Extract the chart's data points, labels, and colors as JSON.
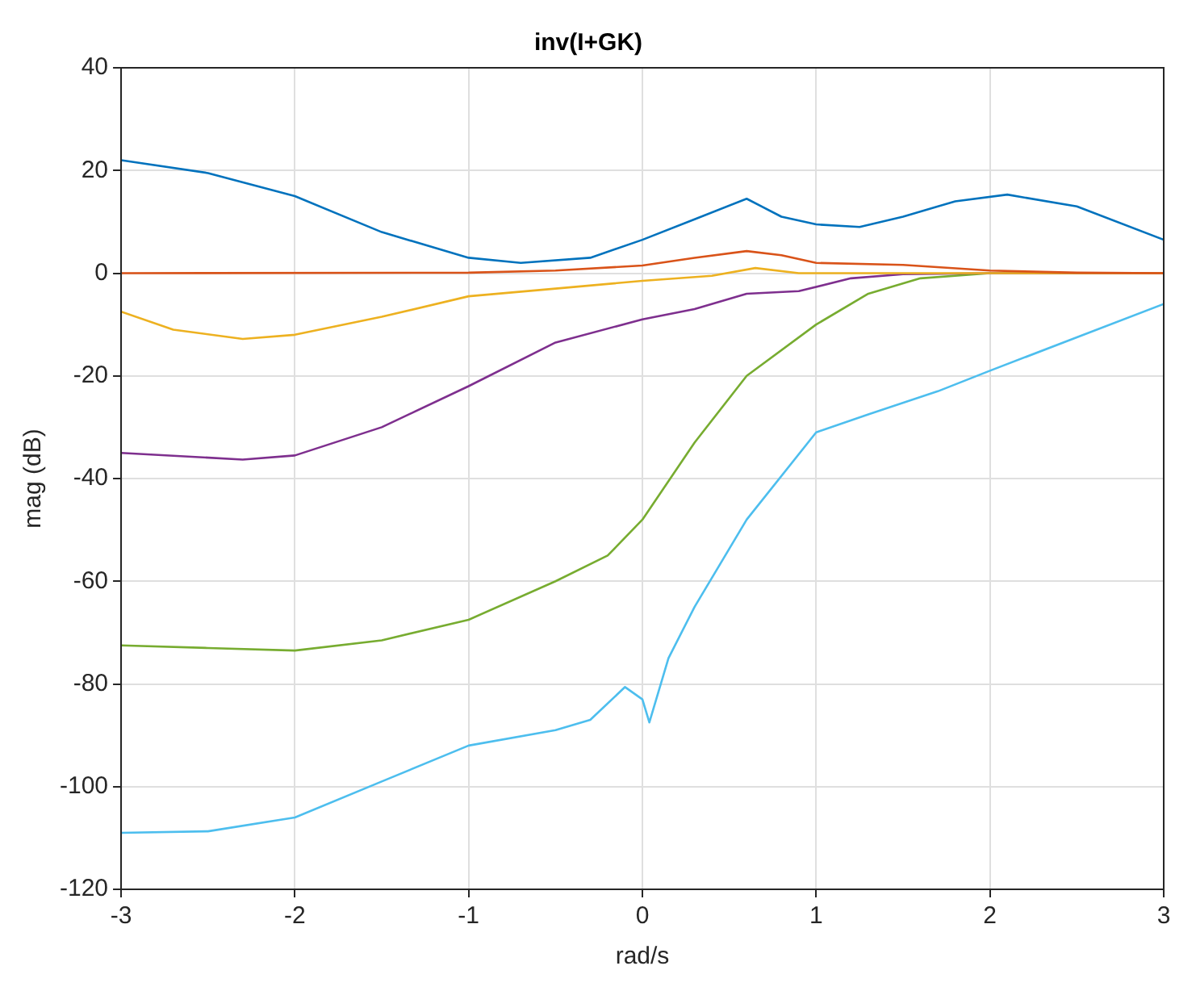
{
  "chart_data": {
    "type": "line",
    "title": "inv(I+GK)",
    "xlabel": "rad/s",
    "ylabel": "mag (dB)",
    "xlim": [
      -3,
      3
    ],
    "ylim": [
      -120,
      40
    ],
    "xticks": [
      -3,
      -2,
      -1,
      0,
      1,
      2,
      3
    ],
    "yticks": [
      -120,
      -100,
      -80,
      -60,
      -40,
      -20,
      0,
      20,
      40
    ],
    "grid": true,
    "legend": false,
    "marker": "none",
    "line_style": "solid",
    "series": [
      {
        "color": "#0072bd",
        "x": [
          -3,
          -2.5,
          -2,
          -1.5,
          -1,
          -0.7,
          -0.3,
          0,
          0.3,
          0.6,
          0.8,
          1,
          1.25,
          1.5,
          1.8,
          2.1,
          2.5,
          3
        ],
        "values": [
          22,
          19.5,
          15,
          8,
          3,
          2,
          3,
          6.5,
          10.5,
          14.5,
          11,
          9.5,
          9,
          11,
          14,
          15.3,
          13,
          6.5
        ]
      },
      {
        "color": "#d95319",
        "x": [
          -3,
          -1,
          -0.5,
          0,
          0.3,
          0.6,
          0.8,
          1,
          1.5,
          2,
          2.5,
          3
        ],
        "values": [
          0,
          0.1,
          0.5,
          1.5,
          3,
          4.3,
          3.5,
          2,
          1.6,
          0.5,
          0.1,
          0
        ]
      },
      {
        "color": "#edb120",
        "x": [
          -3,
          -2.7,
          -2.3,
          -2,
          -1.5,
          -1,
          -0.5,
          0,
          0.4,
          0.65,
          0.9,
          1.5,
          3
        ],
        "values": [
          -7.5,
          -11,
          -12.8,
          -12,
          -8.5,
          -4.5,
          -3,
          -1.5,
          -0.5,
          1,
          0,
          0,
          0
        ]
      },
      {
        "color": "#7e2f8e",
        "x": [
          -3,
          -2.3,
          -2,
          -1.5,
          -1,
          -0.5,
          0,
          0.3,
          0.6,
          0.9,
          1.2,
          1.5,
          2,
          3
        ],
        "values": [
          -35,
          -36.3,
          -35.5,
          -30,
          -22,
          -13.5,
          -9,
          -7,
          -4,
          -3.5,
          -1,
          -0.2,
          0,
          0
        ]
      },
      {
        "color": "#77ac30",
        "x": [
          -3,
          -2.5,
          -2,
          -1.5,
          -1,
          -0.5,
          -0.2,
          0,
          0.3,
          0.6,
          1,
          1.3,
          1.6,
          2,
          3
        ],
        "values": [
          -72.5,
          -73,
          -73.5,
          -71.5,
          -67.5,
          -60,
          -55,
          -48,
          -33,
          -20,
          -10,
          -4,
          -1,
          0,
          0
        ]
      },
      {
        "color": "#4dbeee",
        "x": [
          -3,
          -2.5,
          -2,
          -1.5,
          -1,
          -0.5,
          -0.3,
          -0.1,
          0,
          0.04,
          0.15,
          0.3,
          0.6,
          1,
          1.3,
          1.7,
          2,
          2.5,
          3
        ],
        "values": [
          -109,
          -108.7,
          -106,
          -99,
          -92,
          -89,
          -87,
          -80.6,
          -83,
          -87.5,
          -75,
          -65,
          -48,
          -31,
          -27.5,
          -23,
          -19,
          -12.5,
          -6
        ]
      }
    ]
  }
}
